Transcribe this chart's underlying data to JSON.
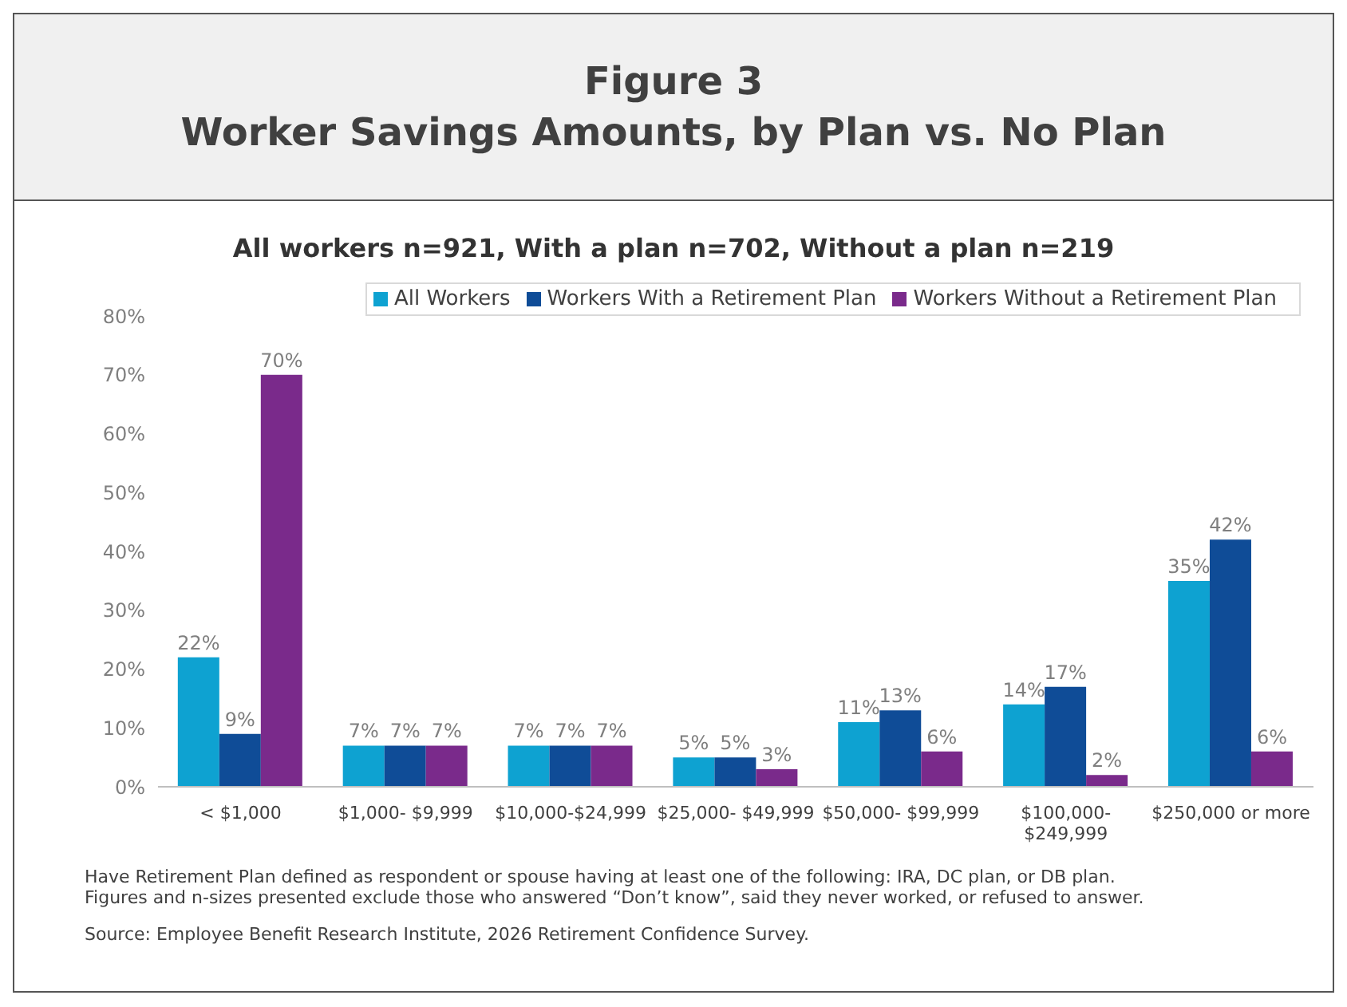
{
  "chart_data": {
    "type": "bar",
    "title": "Figure 3\nWorker Savings Amounts, by Plan vs. No Plan",
    "subtitle": "All workers n=921, With a plan n=702, Without a plan n=219",
    "categories": [
      "< $1,000",
      "$1,000- $9,999",
      "$10,000-$24,999",
      "$25,000- $49,999",
      "$50,000- $99,999",
      "$100,000- $249,999",
      "$250,000 or more"
    ],
    "series": [
      {
        "name": "All Workers",
        "color": "#0ea2d1",
        "values": [
          22,
          7,
          7,
          5,
          11,
          14,
          35
        ],
        "value_labels": [
          "22%",
          "7%",
          "7%",
          "5%",
          "11%",
          "14%",
          "35%"
        ]
      },
      {
        "name": "Workers With a Retirement Plan",
        "color": "#0f4c97",
        "values": [
          9,
          7,
          7,
          5,
          13,
          17,
          42
        ],
        "value_labels": [
          "9%",
          "7%",
          "7%",
          "5%",
          "13%",
          "17%",
          "42%"
        ]
      },
      {
        "name": "Workers Without a Retirement Plan",
        "color": "#7a2a8b",
        "values": [
          70,
          7,
          7,
          3,
          6,
          2,
          6
        ],
        "value_labels": [
          "70%",
          "7%",
          "7%",
          "3%",
          "6%",
          "2%",
          "6%"
        ]
      }
    ],
    "ylim": [
      0,
      80
    ],
    "yticks": [
      {
        "value": 0,
        "label": "0%"
      },
      {
        "value": 10,
        "label": "10%"
      },
      {
        "value": 20,
        "label": "20%"
      },
      {
        "value": 30,
        "label": "30%"
      },
      {
        "value": 40,
        "label": "40%"
      },
      {
        "value": 50,
        "label": "50%"
      },
      {
        "value": 60,
        "label": "60%"
      },
      {
        "value": 70,
        "label": "70%"
      },
      {
        "value": 80,
        "label": "80%"
      }
    ],
    "grid": false,
    "legend": "top right",
    "annotations": [
      "Have Retirement Plan defined as respondent or spouse having at least one of the following: IRA, DC plan, or DB plan.",
      "Figures and n-sizes presented exclude those who answered “Don’t know”, said they never worked, or refused to answer.",
      "Source: Employee Benefit Research Institute, 2026 Retirement Confidence Survey."
    ]
  }
}
